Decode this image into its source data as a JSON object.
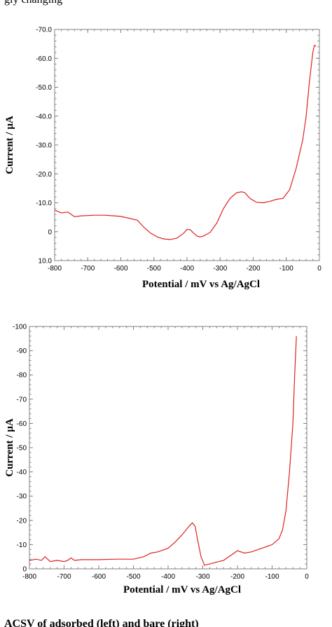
{
  "caption_top_fragment": "gly changing",
  "caption_bottom_fragment": "ACSV of adsorbed (left) and bare (right)",
  "chart_data": [
    {
      "type": "line",
      "xlabel": "Potential / mV vs Ag/AgCl",
      "ylabel": "Current / µA",
      "xlim": [
        -800,
        0
      ],
      "ylim": [
        10,
        -70
      ],
      "y_reversed": true,
      "x_ticks": [
        -800,
        -700,
        -600,
        -500,
        -400,
        -300,
        -200,
        -100,
        0
      ],
      "x_tick_labels": [
        "-800",
        "-700",
        "-600",
        "-500",
        "-400",
        "-300",
        "-200",
        "-100",
        "0"
      ],
      "y_ticks": [
        -70,
        -60,
        -50,
        -40,
        -30,
        -20,
        -10,
        0,
        10
      ],
      "y_tick_labels": [
        "-70.0",
        "-60.0",
        "-50.0",
        "-40.0",
        "-30.0",
        "-20.0",
        "-10.0",
        "0",
        "10.0"
      ],
      "grid": false,
      "series_color": "#e02020",
      "series": [
        {
          "x": [
            -800,
            -780,
            -760,
            -740,
            -720,
            -700,
            -680,
            -650,
            -620,
            -600,
            -580,
            -550,
            -530,
            -510,
            -490,
            -470,
            -450,
            -430,
            -410,
            -400,
            -390,
            -380,
            -370,
            -360,
            -350,
            -330,
            -310,
            -290,
            -270,
            -250,
            -235,
            -225,
            -210,
            -190,
            -170,
            -150,
            -130,
            -110,
            -90,
            -70,
            -50,
            -40,
            -30,
            -20,
            -15,
            -10
          ],
          "y": [
            -7.5,
            -6.5,
            -6.8,
            -5.2,
            -5.5,
            -5.6,
            -5.7,
            -5.7,
            -5.5,
            -5.3,
            -4.8,
            -4.0,
            -1.5,
            0.5,
            1.8,
            2.5,
            2.7,
            2.2,
            0.5,
            -0.8,
            -0.7,
            0.5,
            1.5,
            1.8,
            1.5,
            0.2,
            -3.0,
            -8.0,
            -11.5,
            -13.5,
            -13.8,
            -13.5,
            -11.5,
            -10.2,
            -10.0,
            -10.5,
            -11.2,
            -11.5,
            -14.5,
            -22.0,
            -32.0,
            -40.0,
            -52.0,
            -62.0,
            -64.5,
            -64.2
          ]
        }
      ]
    },
    {
      "type": "line",
      "xlabel": "Potential / mV vs Ag/AgCl",
      "ylabel": "Current / µA",
      "xlim": [
        -800,
        0
      ],
      "ylim": [
        0,
        -100
      ],
      "y_reversed": true,
      "x_ticks": [
        -800,
        -700,
        -600,
        -500,
        -400,
        -300,
        -200,
        -100,
        0
      ],
      "x_tick_labels": [
        "-800",
        "-700",
        "-600",
        "-500",
        "-400",
        "-300",
        "-200",
        "-100",
        "0"
      ],
      "y_ticks": [
        -100,
        -90,
        -80,
        -70,
        -60,
        -50,
        -40,
        -30,
        -20,
        -10,
        0
      ],
      "y_tick_labels": [
        "-100",
        "-90",
        "-80",
        "-70",
        "-60",
        "-50",
        "-40",
        "-30",
        "-20",
        "-10",
        "0"
      ],
      "grid": false,
      "series_color": "#e02020",
      "series": [
        {
          "x": [
            -800,
            -780,
            -765,
            -755,
            -740,
            -720,
            -700,
            -690,
            -680,
            -670,
            -650,
            -600,
            -550,
            -500,
            -470,
            -450,
            -430,
            -400,
            -380,
            -360,
            -340,
            -330,
            -322,
            -315,
            -305,
            -295,
            -280,
            -260,
            -240,
            -220,
            -200,
            -180,
            -160,
            -140,
            -120,
            -100,
            -80,
            -70,
            -60,
            -50,
            -40,
            -35,
            -30
          ],
          "y": [
            -3.5,
            -4.0,
            -3.5,
            -5.0,
            -3.0,
            -3.5,
            -3.0,
            -3.5,
            -4.5,
            -3.5,
            -3.8,
            -3.8,
            -4.0,
            -4.0,
            -5.0,
            -6.5,
            -7.0,
            -8.5,
            -11.0,
            -14.0,
            -17.5,
            -19.0,
            -17.5,
            -12.0,
            -5.0,
            -1.5,
            -2.0,
            -2.8,
            -3.5,
            -5.5,
            -7.5,
            -6.5,
            -7.0,
            -8.0,
            -9.0,
            -10.0,
            -12.5,
            -16.0,
            -24.0,
            -40.0,
            -60.0,
            -80.0,
            -96.0
          ]
        }
      ]
    }
  ]
}
